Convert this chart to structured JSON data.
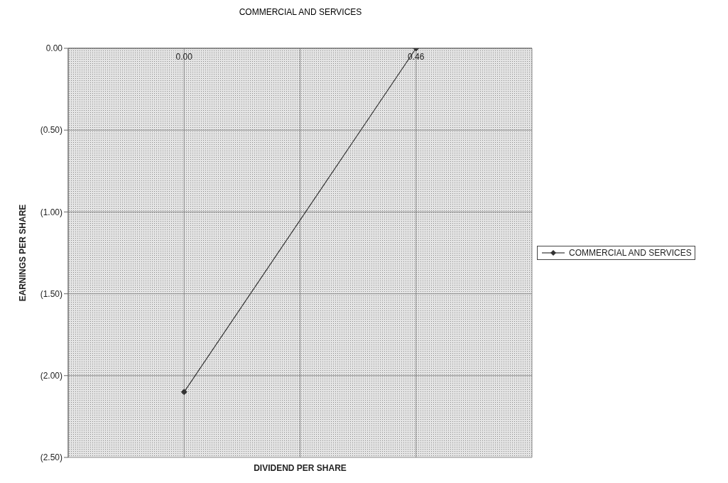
{
  "chart_data": {
    "type": "line",
    "title": "COMMERCIAL AND SERVICES",
    "xlabel": "DIVIDEND PER SHARE",
    "ylabel": "EARNINGS PER SHARE",
    "categories": [
      "0.00",
      "0.46"
    ],
    "series": [
      {
        "name": "COMMERCIAL AND SERVICES",
        "color": "#333333",
        "values": [
          -2.1,
          0
        ]
      }
    ],
    "ylim": [
      -2.5,
      0
    ],
    "yticks": [
      {
        "value": -2.5,
        "label": "(2.50)"
      },
      {
        "value": -2,
        "label": "(2.00)"
      },
      {
        "value": -1.5,
        "label": "(1.50)"
      },
      {
        "value": -1,
        "label": "(1.00)"
      },
      {
        "value": -0.5,
        "label": "(0.50)"
      },
      {
        "value": 0,
        "label": "0.00"
      }
    ],
    "grid": true,
    "legend": "right",
    "marker": "diamond",
    "line_style": "solid"
  }
}
